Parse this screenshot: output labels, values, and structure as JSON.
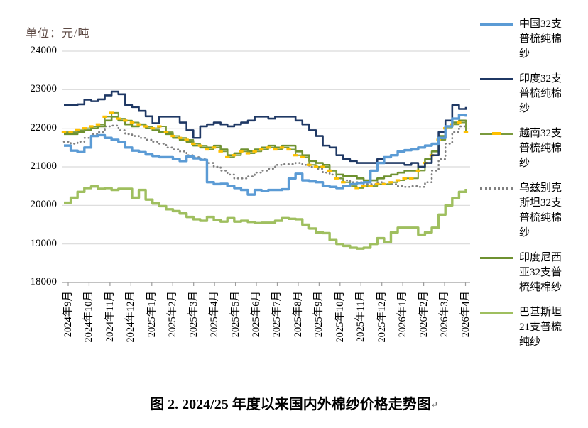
{
  "figure": {
    "unit_label": "单位：元/吨",
    "caption": "图 2. 2024/25 年度以来国内外棉纱价格走势图",
    "caption_mark": "↵"
  },
  "chart_data": {
    "type": "line",
    "title": "图 2. 2024/25 年度以来国内外棉纱价格走势图",
    "unit": "元/吨",
    "xlabel": "",
    "ylabel": "元/吨",
    "ylim": [
      18000,
      24000
    ],
    "yticks": [
      18000,
      19000,
      20000,
      21000,
      22000,
      23000,
      24000
    ],
    "grid": true,
    "legend_position": "right",
    "points_per_month": 3,
    "categories": [
      "2024年9月",
      "2024年10月",
      "2024年11月",
      "2024年12月",
      "2025年1月",
      "2025年2月",
      "2025年3月",
      "2025年4月",
      "2025年5月",
      "2025年6月",
      "2025年7月",
      "2025年8月",
      "2025年9月",
      "2025年10月",
      "2025年11月",
      "2025年12月",
      "2026年1月",
      "2026年2月",
      "2026年3月",
      "2026年4月"
    ],
    "series": [
      {
        "id": "china",
        "name": "中国32支普梳纯棉纱",
        "legend_label": "中国32支\n普梳纯棉\n纱",
        "color": "#5B9BD5",
        "style": "solid",
        "width": 3.4,
        "values": [
          21550,
          21420,
          21380,
          21500,
          21800,
          21820,
          21750,
          21700,
          21650,
          21500,
          21420,
          21380,
          21320,
          21280,
          21250,
          21250,
          21200,
          21150,
          21270,
          21220,
          21180,
          20600,
          20550,
          20560,
          20500,
          20450,
          20400,
          20280,
          20400,
          20380,
          20400,
          20400,
          20420,
          20700,
          20820,
          20650,
          20620,
          20600,
          20500,
          20480,
          20450,
          20500,
          20550,
          20580,
          20600,
          20900,
          21100,
          21250,
          21300,
          21400,
          21430,
          21450,
          21500,
          21550,
          21600,
          21750,
          22050,
          22250,
          22350,
          22300
        ]
      },
      {
        "id": "india",
        "name": "印度32支普梳纯棉纱",
        "legend_label": "印度32支\n普梳纯棉\n纱",
        "color": "#1F3864",
        "style": "solid",
        "width": 2.6,
        "values": [
          22600,
          22600,
          22620,
          22740,
          22700,
          22750,
          22850,
          22950,
          22880,
          22600,
          22550,
          22450,
          22310,
          22130,
          22300,
          22300,
          22300,
          22150,
          21950,
          21750,
          22050,
          22100,
          22150,
          22100,
          22050,
          22100,
          22150,
          22200,
          22300,
          22300,
          22250,
          22300,
          22300,
          22300,
          22200,
          22100,
          21950,
          21800,
          21550,
          21500,
          21300,
          21200,
          21150,
          21100,
          21100,
          21100,
          21200,
          21100,
          21100,
          21100,
          21050,
          21100,
          21000,
          21100,
          21300,
          21900,
          22200,
          22600,
          22500,
          22550
        ]
      },
      {
        "id": "vietnam",
        "name": "越南32支普梳纯棉纱",
        "legend_label": "越南32支\n普梳纯棉\n纱",
        "color": "#7A9A3D",
        "marker": "dash",
        "marker_color": "#FFC000",
        "style": "solid",
        "width": 2,
        "values": [
          21900,
          21900,
          21950,
          22000,
          22050,
          22100,
          22300,
          22400,
          22250,
          22200,
          22150,
          22100,
          22050,
          22000,
          22050,
          21900,
          21800,
          21750,
          21700,
          21600,
          21550,
          21450,
          21500,
          21400,
          21250,
          21300,
          21400,
          21350,
          21400,
          21450,
          21500,
          21450,
          21500,
          21450,
          21300,
          21250,
          21050,
          21000,
          21000,
          20900,
          20700,
          20600,
          20500,
          20450,
          20500,
          20500,
          20550,
          20550,
          20600,
          20650,
          20700,
          20700,
          20900,
          21100,
          21300,
          21700,
          22000,
          22100,
          22150,
          21900
        ]
      },
      {
        "id": "uzbekistan",
        "name": "乌兹别克斯坦32支普梳纯棉纱",
        "legend_label": "乌兹别克\n斯坦32支\n普梳纯棉\n纱",
        "color": "#808080",
        "style": "dotted",
        "width": 2.6,
        "values": [
          21650,
          21600,
          21650,
          21750,
          21850,
          21900,
          22050,
          22070,
          21950,
          21850,
          21800,
          21750,
          21700,
          21650,
          21600,
          21500,
          21450,
          21400,
          21300,
          21250,
          21200,
          21100,
          21000,
          20900,
          20800,
          20700,
          20700,
          20750,
          20850,
          20900,
          20950,
          21050,
          21070,
          21070,
          21100,
          21050,
          21000,
          20950,
          20850,
          20800,
          20700,
          20650,
          20600,
          20600,
          20550,
          20550,
          20600,
          20550,
          20550,
          20500,
          20480,
          20500,
          20480,
          20600,
          20900,
          21200,
          21600,
          21900,
          22050,
          22100
        ]
      },
      {
        "id": "indonesia",
        "name": "印度尼西亚32支普梳纯棉纱",
        "legend_label": "印度尼西\n亚32支普\n梳纯棉纱",
        "color": "#6E9130",
        "style": "solid",
        "width": 2.6,
        "values": [
          21850,
          21850,
          21900,
          21950,
          22000,
          22050,
          22200,
          22300,
          22200,
          22100,
          22050,
          22100,
          22000,
          21950,
          21900,
          21850,
          21750,
          21700,
          21650,
          21550,
          21500,
          21500,
          21550,
          21450,
          21300,
          21350,
          21450,
          21400,
          21450,
          21500,
          21550,
          21500,
          21550,
          21550,
          21400,
          21300,
          21150,
          21100,
          21050,
          20900,
          20800,
          20760,
          20760,
          20700,
          20650,
          20650,
          20700,
          20750,
          20800,
          20850,
          20900,
          20900,
          21000,
          21200,
          21400,
          21800,
          22050,
          22150,
          22200,
          22150
        ]
      },
      {
        "id": "pakistan",
        "name": "巴基斯坦21支普梳纯纱",
        "legend_label": "巴基斯坦\n21支普梳\n纯纱",
        "color": "#9FBF5F",
        "style": "solid",
        "width": 3.4,
        "values": [
          20070,
          20200,
          20350,
          20450,
          20490,
          20430,
          20450,
          20400,
          20430,
          20430,
          20200,
          20400,
          20150,
          20050,
          19980,
          19900,
          19850,
          19790,
          19700,
          19640,
          19600,
          19700,
          19620,
          19580,
          19670,
          19580,
          19600,
          19570,
          19540,
          19550,
          19550,
          19600,
          19670,
          19650,
          19640,
          19500,
          19400,
          19300,
          19280,
          19100,
          19000,
          18950,
          18900,
          18880,
          18900,
          19000,
          19150,
          19050,
          19300,
          19420,
          19420,
          19420,
          19240,
          19300,
          19420,
          19760,
          20000,
          20190,
          20350,
          20430
        ]
      }
    ]
  }
}
